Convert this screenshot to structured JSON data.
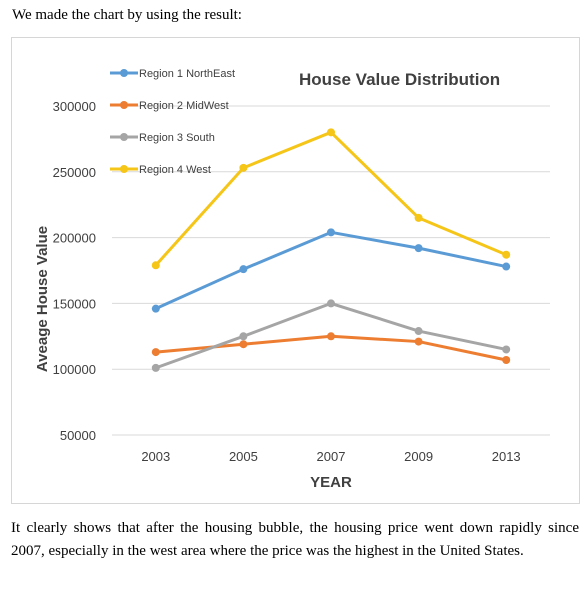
{
  "intro_text": "We made the chart by using the result:",
  "conclusion_text": "It clearly shows that after the housing bubble, the housing price went down rapidly since 2007, especially in the west area where the price was the highest in the United States.",
  "chart_data": {
    "type": "line",
    "title": "House Value Distribution",
    "xlabel": "YEAR",
    "ylabel": "Aveage House Value",
    "categories": [
      "2003",
      "2005",
      "2007",
      "2009",
      "2013"
    ],
    "ylim": [
      50000,
      300000
    ],
    "yticks": [
      50000,
      100000,
      150000,
      200000,
      250000,
      300000
    ],
    "grid": true,
    "legend_position": "top-left",
    "series": [
      {
        "name": "Region 1 NorthEast",
        "color": "#5b9bd5",
        "values": [
          146000,
          176000,
          204000,
          192000,
          178000
        ]
      },
      {
        "name": "Region 2 MidWest",
        "color": "#ed7d31",
        "values": [
          113000,
          119000,
          125000,
          121000,
          107000
        ]
      },
      {
        "name": "Region 3 South",
        "color": "#a5a5a5",
        "values": [
          101000,
          125000,
          150000,
          129000,
          115000
        ]
      },
      {
        "name": "Region 4 West",
        "color": "#f5c518",
        "values": [
          179000,
          253000,
          280000,
          215000,
          187000
        ]
      }
    ]
  }
}
